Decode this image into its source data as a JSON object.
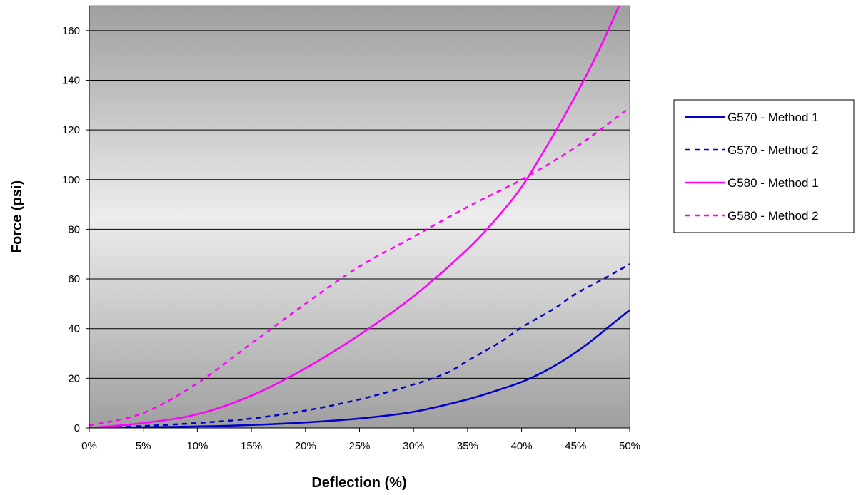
{
  "chart_data": {
    "type": "line",
    "xlabel": "Deflection (%)",
    "ylabel": "Force (psi)",
    "xlim": [
      0,
      50
    ],
    "ylim": [
      0,
      170
    ],
    "x_ticks": [
      0,
      5,
      10,
      15,
      20,
      25,
      30,
      35,
      40,
      45,
      50
    ],
    "x_tick_labels": [
      "0%",
      "5%",
      "10%",
      "15%",
      "20%",
      "25%",
      "30%",
      "35%",
      "40%",
      "45%",
      "50%"
    ],
    "y_ticks": [
      0,
      20,
      40,
      60,
      80,
      100,
      120,
      140,
      160
    ],
    "y_tick_labels": [
      "0",
      "20",
      "40",
      "60",
      "80",
      "100",
      "120",
      "140",
      "160"
    ],
    "grid": "horizontal",
    "legend_position": "right",
    "background": "gradient gray-to-white-to-gray",
    "series": [
      {
        "name": "G570 - Method 1",
        "color": "#0000CC",
        "style": "solid",
        "x": [
          0,
          5,
          10,
          15,
          20,
          25,
          30,
          35,
          38,
          40,
          42,
          44,
          46,
          48,
          50
        ],
        "y": [
          0,
          0.3,
          0.6,
          1.2,
          2.2,
          3.8,
          6.5,
          11.5,
          15.5,
          18.5,
          22.5,
          27.5,
          33.5,
          40.5,
          47.5
        ]
      },
      {
        "name": "G570 - Method 2",
        "color": "#0000CC",
        "style": "dashed",
        "x": [
          0,
          5,
          10,
          15,
          20,
          25,
          30,
          33,
          35,
          38,
          40,
          43,
          45,
          48,
          50
        ],
        "y": [
          0,
          0.8,
          2,
          3.8,
          7,
          11.5,
          17.5,
          22,
          27,
          34.5,
          40.5,
          48,
          54,
          61,
          66
        ]
      },
      {
        "name": "G580 - Method 1",
        "color": "#FF00FF",
        "style": "solid",
        "x": [
          0,
          5,
          10,
          15,
          20,
          25,
          30,
          35,
          38,
          40,
          42,
          44,
          46,
          48,
          50
        ],
        "y": [
          0,
          2,
          5.5,
          13,
          24,
          37.5,
          53,
          72,
          86,
          97,
          111,
          126,
          142,
          160,
          180
        ]
      },
      {
        "name": "G580 - Method 2",
        "color": "#FF00FF",
        "style": "dashed",
        "x": [
          0,
          5,
          10,
          15,
          20,
          25,
          30,
          35,
          40,
          45,
          50
        ],
        "y": [
          1,
          6,
          18,
          34,
          50,
          65,
          77,
          89,
          100,
          113,
          129
        ]
      }
    ]
  }
}
